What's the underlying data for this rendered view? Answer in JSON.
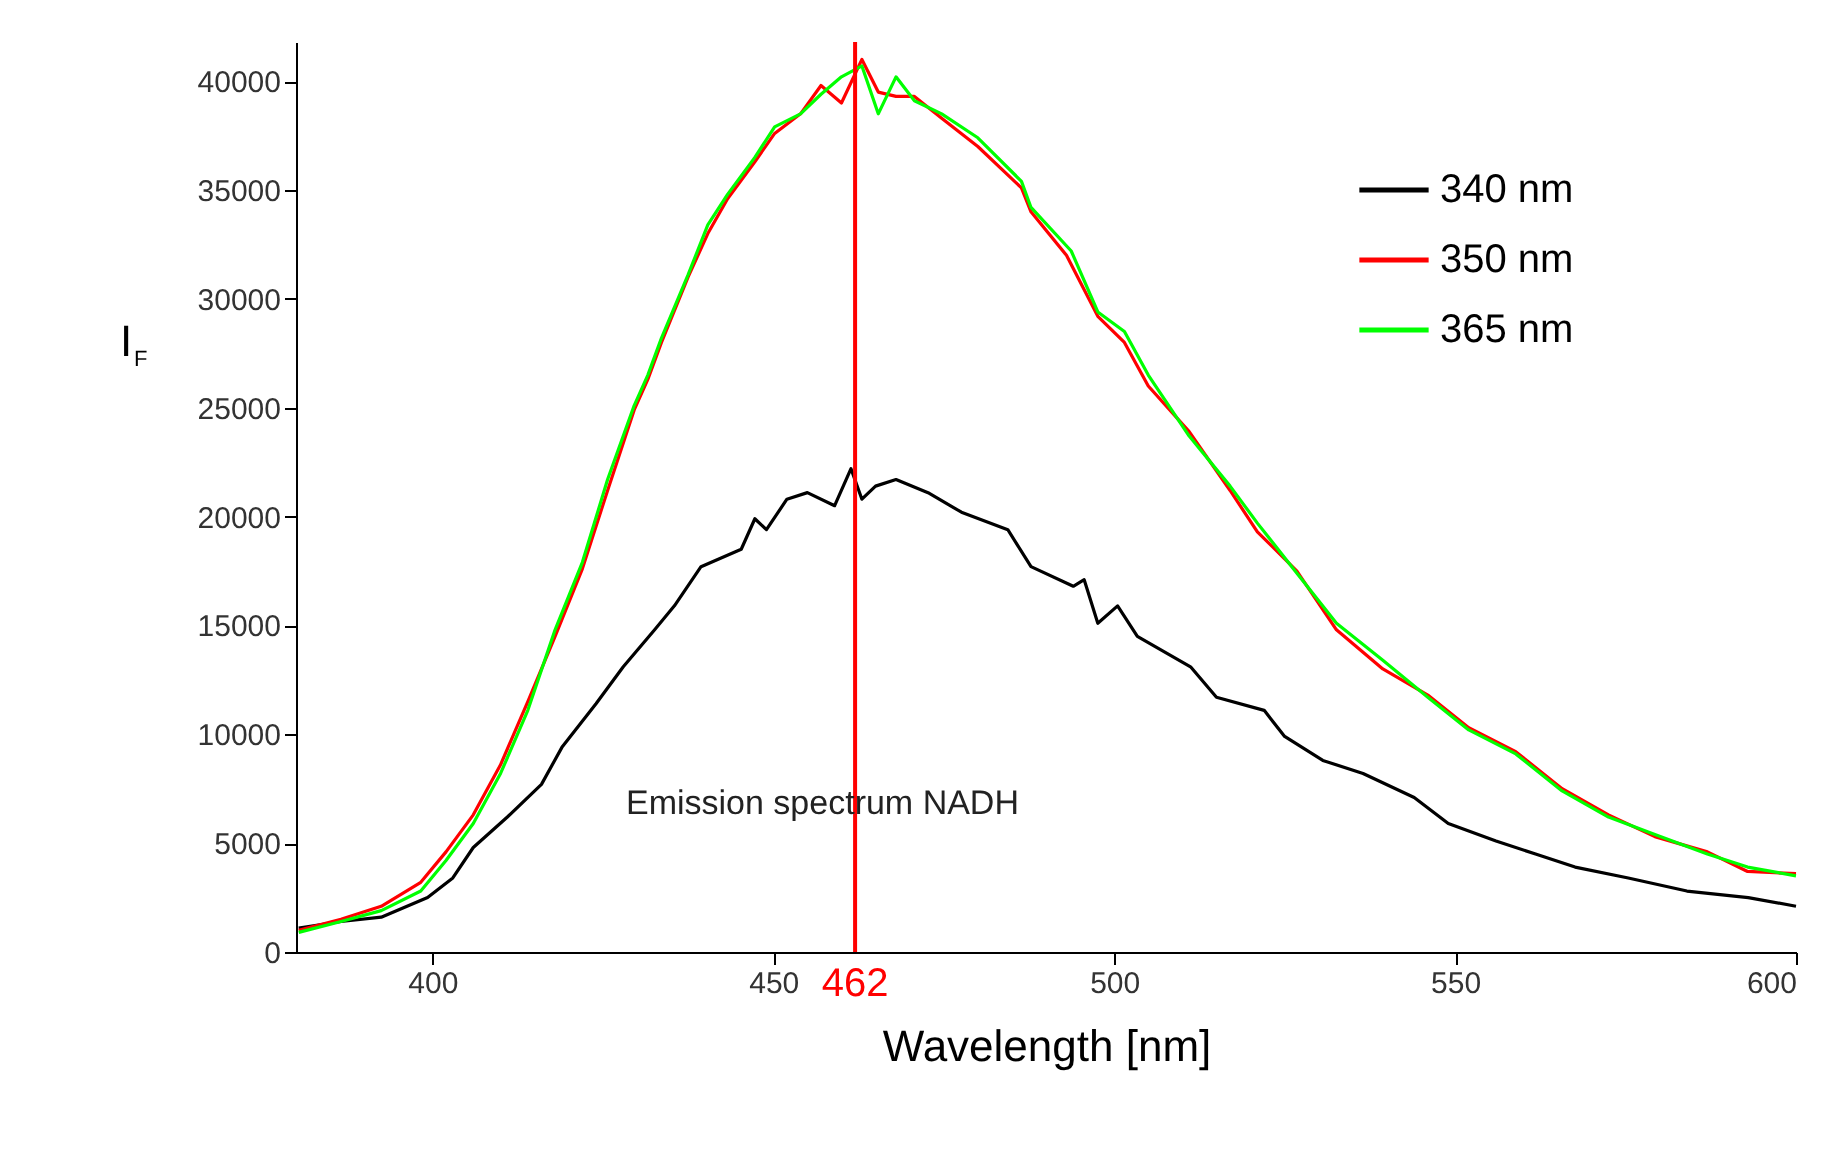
{
  "chart_data": {
    "type": "line",
    "xlabel": "Wavelength [nm]",
    "ylabel": "I$_{F}$",
    "xlim": [
      380,
      600
    ],
    "xticks": [
      400,
      450,
      500,
      550,
      600
    ],
    "ylim": [
      0,
      41800
    ],
    "yticks": [
      0,
      5000,
      10000,
      15000,
      20000,
      25000,
      30000,
      35000,
      40000
    ],
    "grid": false,
    "legend": "top right",
    "marker": "none",
    "line_style": "solid",
    "annotations": [
      "Emission spectrum NADH"
    ],
    "ref_lines": [
      {
        "axis": "x",
        "value": 462,
        "label": "462",
        "color": "#ff0000"
      }
    ],
    "series": [
      {
        "name": "340 nm",
        "color": "#000000",
        "x": [
          380.4,
          386.6,
          392.5,
          399.3,
          403,
          406,
          411,
          416,
          419,
          424,
          428,
          432.6,
          435.5,
          439.4,
          445.3,
          447.3,
          449,
          452,
          455,
          459,
          461.4,
          463,
          465,
          468,
          472.7,
          477.6,
          484.4,
          487.8,
          494,
          495.6,
          497.6,
          500.5,
          503.4,
          511.2,
          515,
          522,
          525,
          530.6,
          536.5,
          544,
          549,
          556,
          561.8,
          567.6,
          575.4,
          584,
          593,
          600
        ],
        "values": [
          1100,
          1400,
          1600,
          2500,
          3400,
          4800,
          6200,
          7700,
          9400,
          11400,
          13100,
          14800,
          15900,
          17700,
          18500,
          19900,
          19400,
          20800,
          21100,
          20500,
          22200,
          20800,
          21400,
          21700,
          21100,
          20200,
          19400,
          17700,
          16800,
          17100,
          15100,
          15900,
          14500,
          13100,
          11700,
          11100,
          9900,
          8800,
          8200,
          7100,
          5900,
          5100,
          4500,
          3900,
          3400,
          2800,
          2500,
          2100
        ]
      },
      {
        "name": "350 nm",
        "color": "#ff0000",
        "x": [
          380.4,
          386.6,
          392.5,
          398.3,
          402,
          406,
          410,
          414,
          418,
          422,
          425.7,
          429.6,
          431.6,
          433.6,
          437.5,
          440.4,
          443.3,
          447.3,
          450.2,
          454,
          457,
          460,
          463,
          465.4,
          468,
          470.7,
          474.7,
          480,
          486.4,
          487.8,
          493,
          497.6,
          501.5,
          505,
          511,
          517,
          521,
          526.8,
          532.6,
          539.4,
          546,
          552,
          558.9,
          565.7,
          572.5,
          579.3,
          587,
          592.9,
          600
        ],
        "values": [
          1000,
          1500,
          2100,
          3200,
          4600,
          6300,
          8600,
          11500,
          14500,
          17600,
          21200,
          24900,
          26300,
          28000,
          31000,
          33000,
          34600,
          36300,
          37600,
          38500,
          39800,
          39000,
          41000,
          39500,
          39300,
          39300,
          38300,
          37000,
          35100,
          34000,
          32000,
          29200,
          28000,
          26000,
          23900,
          21200,
          19300,
          17500,
          14800,
          13000,
          11800,
          10300,
          9200,
          7500,
          6300,
          5300,
          4600,
          3700,
          3600
        ]
      },
      {
        "name": "365 nm",
        "color": "#00ff00",
        "x": [
          380.4,
          386.6,
          392.5,
          398.3,
          402,
          406,
          410,
          414,
          418,
          422,
          425.7,
          429.6,
          431.6,
          433.6,
          437.5,
          440.4,
          443.3,
          447.3,
          450.2,
          454,
          457,
          460,
          463,
          465.4,
          468,
          470.7,
          474.7,
          480,
          486.4,
          487.8,
          493.7,
          497.6,
          501.5,
          505,
          511,
          517,
          521,
          526.8,
          532.6,
          539.4,
          546,
          552,
          558.9,
          565.7,
          572.5,
          579.3,
          587,
          592.9,
          600
        ],
        "values": [
          900,
          1400,
          1900,
          2800,
          4200,
          5900,
          8200,
          11100,
          14800,
          17900,
          21700,
          25100,
          26500,
          28200,
          31100,
          33400,
          34800,
          36500,
          37900,
          38500,
          39400,
          40200,
          40700,
          38500,
          40200,
          39100,
          38500,
          37400,
          35400,
          34200,
          32200,
          29400,
          28500,
          26500,
          23700,
          21400,
          19700,
          17400,
          15100,
          13400,
          11700,
          10200,
          9100,
          7400,
          6200,
          5400,
          4500,
          3900,
          3500
        ]
      }
    ]
  }
}
